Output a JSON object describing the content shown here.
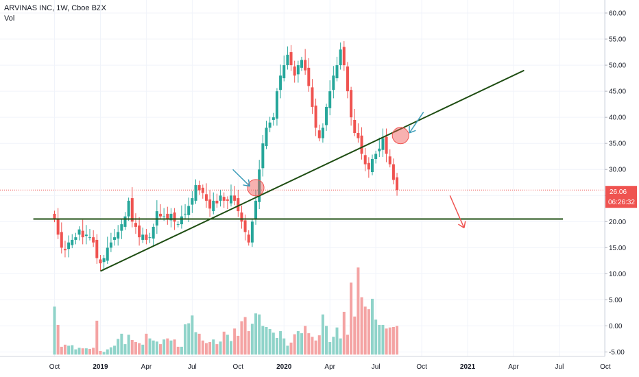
{
  "header": {
    "symbol": "ARVINAS INC, 1W, Cboe BZX",
    "indicator": "Vol"
  },
  "price_tag": {
    "value": "26.06",
    "countdown": "06:26:32",
    "color": "#ef5350"
  },
  "colors": {
    "up": "#26a69a",
    "down": "#ef5350",
    "vol_up": "#8fd3c9",
    "vol_down": "#f4a3a3",
    "trendline": "#1e4d12",
    "arrow_blue": "#3b9cb8",
    "arrow_red": "#ef5350",
    "highlight": "#ef5350",
    "grid": "#f0f3fa"
  },
  "chart_data": {
    "type": "candlestick",
    "y_ticks": [
      "60.00",
      "55.00",
      "50.00",
      "45.00",
      "40.00",
      "35.00",
      "30.00",
      "25.00",
      "20.00",
      "15.00",
      "10.00",
      "5.00",
      "0.00",
      "-5.00"
    ],
    "y_tick_values": [
      60,
      55,
      50,
      45,
      40,
      35,
      30,
      25,
      20,
      15,
      10,
      5,
      0,
      -5
    ],
    "ylim": [
      -5.5,
      62
    ],
    "x_ticks": [
      {
        "label": "Oct",
        "t": 0,
        "bold": false
      },
      {
        "label": "2019",
        "t": 13,
        "bold": true
      },
      {
        "label": "Apr",
        "t": 26,
        "bold": false
      },
      {
        "label": "Jul",
        "t": 39,
        "bold": false
      },
      {
        "label": "Oct",
        "t": 52,
        "bold": false
      },
      {
        "label": "2020",
        "t": 65,
        "bold": true
      },
      {
        "label": "Apr",
        "t": 78,
        "bold": false
      },
      {
        "label": "Jul",
        "t": 91,
        "bold": false
      },
      {
        "label": "Oct",
        "t": 104,
        "bold": false
      },
      {
        "label": "2021",
        "t": 117,
        "bold": true
      },
      {
        "label": "Apr",
        "t": 130,
        "bold": false
      },
      {
        "label": "Jul",
        "t": 143,
        "bold": false
      },
      {
        "label": "Oct",
        "t": 156,
        "bold": false
      }
    ],
    "last_price": 26.06,
    "close": [
      20.5,
      17.5,
      15,
      14.5,
      16,
      16.5,
      17,
      18.5,
      17,
      17.5,
      17,
      16,
      13,
      12,
      13,
      15,
      16,
      17,
      18,
      19.5,
      21,
      24,
      20,
      19,
      17,
      17.5,
      16.5,
      17,
      19,
      22,
      21,
      21,
      20.5,
      21.5,
      20,
      19.5,
      21,
      21.5,
      23,
      24.5,
      27,
      26,
      25.5,
      24,
      22.5,
      24,
      23.5,
      25,
      24,
      24,
      25,
      24,
      22,
      20,
      18,
      16,
      20,
      24,
      30,
      35,
      38,
      39,
      40,
      45,
      48,
      50,
      52,
      50,
      48,
      50,
      51,
      49,
      46,
      42,
      38,
      36,
      38,
      42,
      45,
      48,
      50,
      53,
      50,
      45,
      40,
      37,
      36,
      33,
      31,
      30,
      32,
      33,
      34,
      36,
      33,
      31,
      28,
      26.06
    ],
    "volume": [
      3.7,
      0.2,
      -4,
      -3.6,
      -3.8,
      -3.7,
      -4.5,
      -4.2,
      -4.3,
      -4.3,
      -4.4,
      -4.2,
      1,
      -4.8,
      -5,
      -4.5,
      -4.1,
      -3.8,
      -2.5,
      -1.5,
      -3.5,
      -1.7,
      -2.7,
      -3.1,
      -3.3,
      -3.6,
      -1.5,
      -2.4,
      -2.8,
      -3,
      -3.5,
      -2.6,
      -2.4,
      -2.8,
      -2.6,
      -4,
      -4,
      0.3,
      0.5,
      2,
      -1.2,
      -1.5,
      -2.8,
      -3.3,
      -3.1,
      -2.6,
      -3.5,
      -3,
      -1.1,
      -1.7,
      -2.9,
      -0.5,
      -1.9,
      0.9,
      1.7,
      -1,
      0.4,
      2.4,
      2.2,
      0,
      -0.2,
      -0.6,
      -1.3,
      -2.3,
      -1,
      -2.4,
      -3.8,
      -3.2,
      -1.6,
      -1,
      -1.4,
      0,
      -1.4,
      -2.1,
      -2.8,
      -1.8,
      2.2,
      0,
      -3.1,
      -2.1,
      -0.3,
      -2.4,
      2.7,
      -1.7,
      8.3,
      1.8,
      11.2,
      5.5,
      3.7,
      3.2,
      5.2,
      1.2,
      0.2,
      0.2,
      -0.5,
      -0.3,
      -0.2,
      0
    ],
    "trendlines": [
      {
        "t1": -6,
        "p1": 20.5,
        "t2": 144,
        "p2": 20.5
      },
      {
        "t1": 13,
        "p1": 10.5,
        "t2": 133,
        "p2": 49
      }
    ],
    "highlights": [
      {
        "t": 57,
        "p": 26.5
      },
      {
        "t": 98,
        "p": 36.5
      }
    ],
    "arrows": [
      {
        "color": "blue",
        "x1": 50.5,
        "y1": 30,
        "x2": 55.3,
        "y2": 26.8
      },
      {
        "color": "blue",
        "x1": 104.5,
        "y1": 41,
        "x2": 100.5,
        "y2": 37
      },
      {
        "color": "red",
        "x1": 112,
        "y1": 25,
        "x2": 116,
        "y2": 18.8
      }
    ]
  }
}
